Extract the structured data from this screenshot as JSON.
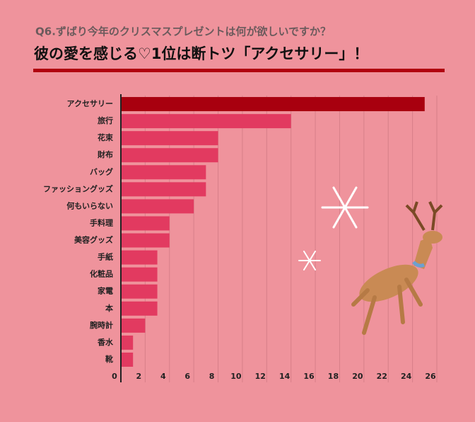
{
  "chart_data": {
    "type": "hbar",
    "subtitle": "Q6.ずばり今年のクリスマスプレゼントは何が欲しいですか？",
    "title": "彼の愛を感じる♡1位は断トツ「アクセサリー」！",
    "categories": [
      "アクセサリー",
      "旅行",
      "花束",
      "財布",
      "バッグ",
      "ファッショングッズ",
      "何もいらない",
      "手料理",
      "美容グッズ",
      "手紙",
      "化粧品",
      "家電",
      "本",
      "腕時計",
      "香水",
      "靴"
    ],
    "values": [
      25,
      14,
      8,
      8,
      7,
      7,
      6,
      4,
      4,
      3,
      3,
      3,
      3,
      2,
      1,
      1
    ],
    "colors": [
      "#a8000f",
      "#e23a60",
      "#e23a60",
      "#e23a60",
      "#e23a60",
      "#e23a60",
      "#e23a60",
      "#e23a60",
      "#e23a60",
      "#e23a60",
      "#e23a60",
      "#e23a60",
      "#e23a60",
      "#e23a60",
      "#e23a60",
      "#e23a60"
    ],
    "xlim": [
      0,
      26
    ],
    "xticks": [
      0,
      2,
      4,
      6,
      8,
      10,
      12,
      14,
      16,
      18,
      20,
      22,
      24,
      26
    ],
    "grid": true
  }
}
